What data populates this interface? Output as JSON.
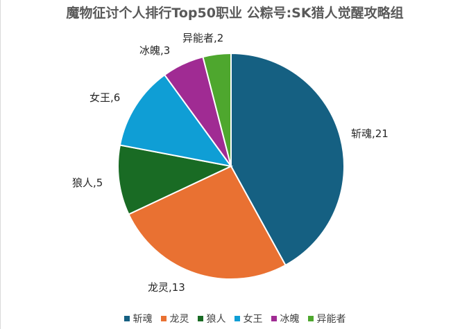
{
  "chart_data": {
    "type": "pie",
    "title": "魔物征讨个人排行Top50职业 公粽号:SK猎人觉醒攻略组",
    "categories": [
      "斩魂",
      "龙灵",
      "狼人",
      "女王",
      "冰魄",
      "异能者"
    ],
    "values": [
      21,
      13,
      5,
      6,
      3,
      2
    ],
    "colors": [
      "#156082",
      "#E97132",
      "#196B24",
      "#0F9ED5",
      "#A02B93",
      "#4EA72E"
    ],
    "legend": "bottom",
    "data_labels": "category, value"
  }
}
